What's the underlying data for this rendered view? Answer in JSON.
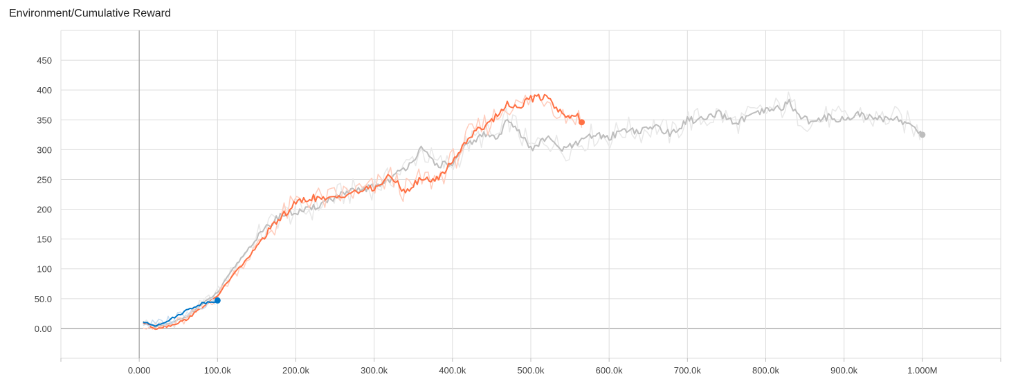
{
  "chart_data": {
    "type": "line",
    "title": "Environment/Cumulative Reward",
    "xlabel": "",
    "ylabel": "",
    "xlim": [
      -100000,
      1100000
    ],
    "ylim": [
      -50,
      500
    ],
    "x_ticks": [
      0,
      100000,
      200000,
      300000,
      400000,
      500000,
      600000,
      700000,
      800000,
      900000,
      1000000
    ],
    "x_tick_labels": [
      "0.000",
      "100.0k",
      "200.0k",
      "300.0k",
      "400.0k",
      "500.0k",
      "600.0k",
      "700.0k",
      "800.0k",
      "900.0k",
      "1.000M"
    ],
    "y_ticks": [
      0,
      50,
      100,
      150,
      200,
      250,
      300,
      350,
      400,
      450
    ],
    "y_tick_labels": [
      "0.00",
      "50.0",
      "100",
      "150",
      "200",
      "250",
      "300",
      "350",
      "400",
      "450"
    ],
    "grid": true,
    "series": [
      {
        "color": "#bdbdbd",
        "raw_color": "#e8e8e8",
        "x": [
          5000,
          20000,
          40000,
          60000,
          80000,
          100000,
          120000,
          140000,
          160000,
          180000,
          200000,
          220000,
          240000,
          260000,
          280000,
          300000,
          320000,
          340000,
          360000,
          380000,
          400000,
          420000,
          440000,
          460000,
          470000,
          480000,
          500000,
          520000,
          540000,
          560000,
          580000,
          600000,
          620000,
          640000,
          660000,
          680000,
          700000,
          720000,
          740000,
          760000,
          780000,
          800000,
          820000,
          830000,
          840000,
          860000,
          880000,
          900000,
          920000,
          940000,
          960000,
          980000,
          1000000
        ],
        "values": [
          12,
          2,
          8,
          20,
          40,
          60,
          100,
          135,
          165,
          190,
          195,
          200,
          215,
          225,
          232,
          238,
          250,
          270,
          300,
          275,
          275,
          310,
          325,
          320,
          355,
          340,
          300,
          320,
          300,
          310,
          325,
          320,
          335,
          330,
          340,
          325,
          350,
          350,
          360,
          345,
          355,
          365,
          370,
          380,
          360,
          345,
          355,
          350,
          360,
          350,
          355,
          345,
          325
        ]
      },
      {
        "color": "#ff7043",
        "raw_color": "#ffccbc",
        "x": [
          5000,
          20000,
          40000,
          60000,
          80000,
          100000,
          120000,
          140000,
          160000,
          180000,
          200000,
          220000,
          240000,
          260000,
          280000,
          300000,
          320000,
          340000,
          360000,
          380000,
          400000,
          420000,
          440000,
          460000,
          470000,
          480000,
          500000,
          520000,
          540000,
          560000,
          565000
        ],
        "values": [
          10,
          0,
          5,
          15,
          35,
          55,
          90,
          120,
          155,
          185,
          210,
          220,
          215,
          225,
          230,
          235,
          255,
          230,
          250,
          250,
          280,
          320,
          340,
          360,
          380,
          370,
          385,
          390,
          360,
          355,
          346
        ]
      },
      {
        "color": "#0077c8",
        "raw_color": "#c6dbef",
        "x": [
          5000,
          20000,
          40000,
          60000,
          80000,
          100000
        ],
        "values": [
          10,
          5,
          15,
          30,
          42,
          47
        ]
      }
    ]
  }
}
